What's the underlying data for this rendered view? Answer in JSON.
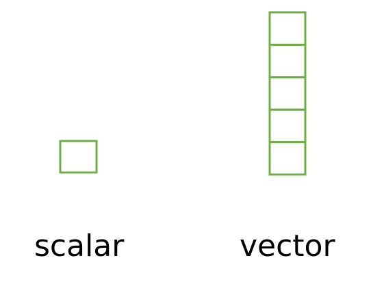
{
  "diagram": {
    "scalar": {
      "label": "scalar",
      "cell_count": 1
    },
    "vector": {
      "label": "vector",
      "cell_count": 5
    },
    "stroke_color": "#70AD47"
  }
}
